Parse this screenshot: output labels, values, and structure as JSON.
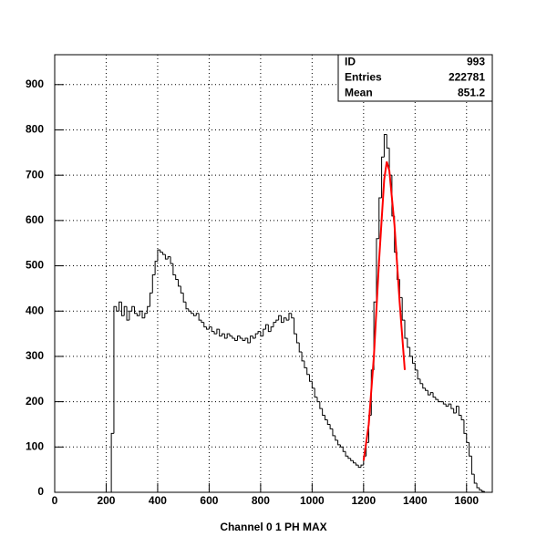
{
  "chart_data": {
    "type": "histogram",
    "x_label": "Channel 0 1 PH MAX",
    "bins": [
      0,
      10,
      20,
      30,
      40,
      50,
      60,
      70,
      80,
      90,
      100,
      110,
      120,
      130,
      140,
      150,
      160,
      170,
      180,
      190,
      200,
      210,
      220,
      230,
      240,
      250,
      260,
      270,
      280,
      290,
      300,
      310,
      320,
      330,
      340,
      350,
      360,
      370,
      380,
      390,
      400,
      410,
      420,
      430,
      440,
      450,
      460,
      470,
      480,
      490,
      500,
      510,
      520,
      530,
      540,
      550,
      560,
      570,
      580,
      590,
      600,
      610,
      620,
      630,
      640,
      650,
      660,
      670,
      680,
      690,
      700,
      710,
      720,
      730,
      740,
      750,
      760,
      770,
      780,
      790,
      800,
      810,
      820,
      830,
      840,
      850,
      860,
      870,
      880,
      890,
      900,
      910,
      920,
      930,
      940,
      950,
      960,
      970,
      980,
      990,
      1000,
      1010,
      1020,
      1030,
      1040,
      1050,
      1060,
      1070,
      1080,
      1090,
      1100,
      1110,
      1120,
      1130,
      1140,
      1150,
      1160,
      1170,
      1180,
      1190,
      1200,
      1210,
      1220,
      1230,
      1240,
      1250,
      1260,
      1270,
      1280,
      1290,
      1300,
      1310,
      1320,
      1330,
      1340,
      1350,
      1360,
      1370,
      1380,
      1390,
      1400,
      1410,
      1420,
      1430,
      1440,
      1450,
      1460,
      1470,
      1480,
      1490,
      1500,
      1510,
      1520,
      1530,
      1540,
      1550,
      1560,
      1570,
      1580,
      1590,
      1600,
      1610,
      1620,
      1630,
      1640,
      1650,
      1660,
      1670,
      1680,
      1690,
      1700
    ],
    "values": [
      0,
      0,
      0,
      0,
      0,
      0,
      0,
      0,
      0,
      0,
      0,
      0,
      0,
      0,
      0,
      0,
      0,
      0,
      0,
      0,
      0,
      0,
      130,
      410,
      400,
      420,
      390,
      410,
      380,
      400,
      410,
      395,
      390,
      400,
      385,
      395,
      410,
      440,
      480,
      510,
      535,
      530,
      525,
      515,
      520,
      505,
      480,
      470,
      455,
      440,
      420,
      405,
      400,
      395,
      390,
      395,
      380,
      375,
      365,
      360,
      365,
      355,
      350,
      360,
      345,
      350,
      340,
      350,
      345,
      340,
      335,
      345,
      340,
      335,
      340,
      330,
      345,
      340,
      350,
      355,
      345,
      360,
      370,
      355,
      365,
      375,
      380,
      390,
      375,
      385,
      380,
      395,
      385,
      350,
      330,
      310,
      290,
      275,
      260,
      245,
      230,
      210,
      200,
      185,
      170,
      160,
      150,
      140,
      125,
      115,
      105,
      100,
      90,
      80,
      75,
      70,
      65,
      60,
      55,
      60,
      80,
      110,
      170,
      270,
      420,
      560,
      650,
      740,
      790,
      760,
      700,
      610,
      530,
      470,
      430,
      380,
      340,
      320,
      300,
      285,
      270,
      250,
      240,
      230,
      225,
      215,
      220,
      210,
      205,
      200,
      200,
      195,
      190,
      195,
      185,
      175,
      190,
      170,
      160,
      130,
      110,
      80,
      40,
      20,
      10,
      5,
      2,
      0,
      0,
      0
    ],
    "color": "#000000",
    "fit": {
      "color": "#ff0000",
      "x": [
        1200,
        1220,
        1240,
        1260,
        1280,
        1290,
        1300,
        1320,
        1340,
        1360
      ],
      "values": [
        70,
        150,
        300,
        510,
        690,
        730,
        710,
        590,
        420,
        270
      ]
    },
    "xlim": [
      0,
      1700
    ],
    "ylim": [
      0,
      966
    ],
    "xticks": [
      0,
      200,
      400,
      600,
      800,
      1000,
      1200,
      1400,
      1600
    ],
    "yticks": [
      0,
      100,
      200,
      300,
      400,
      500,
      600,
      700,
      800,
      900
    ],
    "grid": true,
    "stats": [
      {
        "label": "ID",
        "value": 993
      },
      {
        "label": "Entries",
        "value": 222781
      },
      {
        "label": "Mean",
        "value": 851.2
      }
    ]
  }
}
